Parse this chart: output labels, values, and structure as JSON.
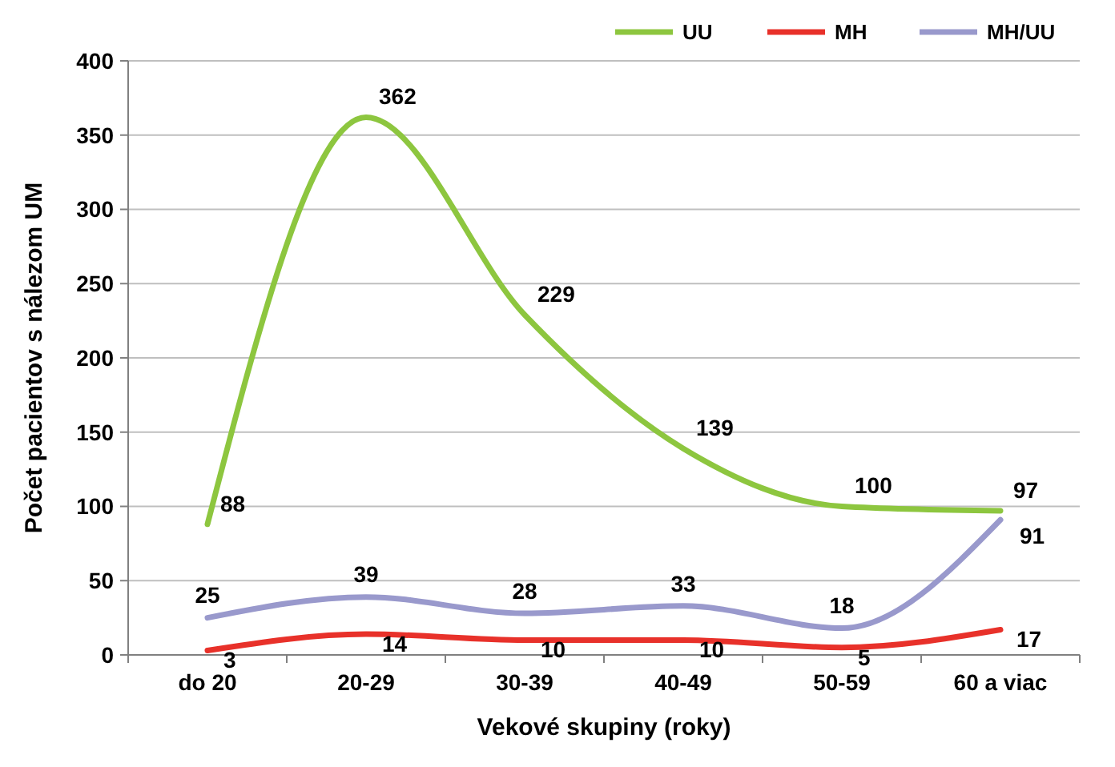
{
  "chart_data": {
    "type": "line",
    "xlabel": "Vekové skupiny (roky)",
    "ylabel": "Počet pacientov s nálezom UM",
    "categories": [
      "do 20",
      "20-29",
      "30-39",
      "40-49",
      "50-59",
      "60 a viac"
    ],
    "series": [
      {
        "name": "UU",
        "color": "#8dc63f",
        "values": [
          88,
          362,
          229,
          139,
          100,
          97
        ]
      },
      {
        "name": "MH",
        "color": "#e8312a",
        "values": [
          3,
          14,
          10,
          10,
          5,
          17
        ]
      },
      {
        "name": "MH/UU",
        "color": "#9999cc",
        "values": [
          25,
          39,
          28,
          33,
          18,
          91
        ]
      }
    ],
    "ylim": [
      0,
      400
    ],
    "yticks": [
      0,
      50,
      100,
      150,
      200,
      250,
      300,
      350,
      400
    ],
    "grid": "y",
    "legend": "top right",
    "data_labels": true,
    "marker": "none",
    "line_style": "solid"
  }
}
